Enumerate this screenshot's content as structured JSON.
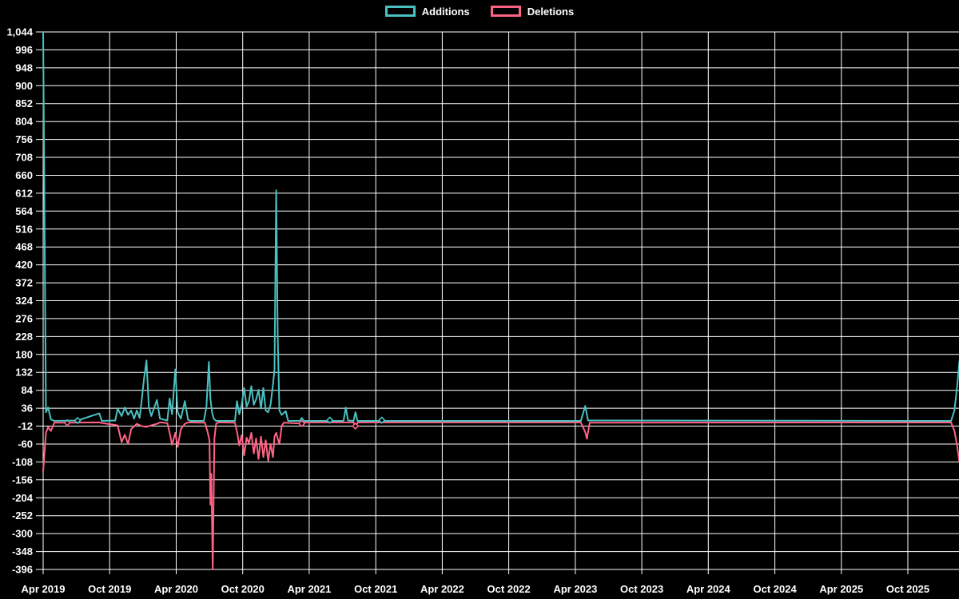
{
  "page": {
    "background": "#000000",
    "grid_color": "#ffffff",
    "text_color": "#ffffff"
  },
  "legend": {
    "position": "top-center",
    "items": [
      {
        "label": "Additions",
        "color": "#4BC0C0"
      },
      {
        "label": "Deletions",
        "color": "#FF6384"
      }
    ]
  },
  "chart_data": {
    "type": "line",
    "title": "",
    "xlabel": "",
    "ylabel": "",
    "grid": true,
    "legend_position": "top-center",
    "x_axis": {
      "unit": "months since Apr 2019",
      "range_months": [
        0,
        82.7
      ],
      "tick_months": [
        0,
        6,
        12,
        18,
        24,
        30,
        36,
        42,
        48,
        54,
        60,
        66,
        72,
        78
      ],
      "tick_labels": [
        "Apr 2019",
        "Oct 2019",
        "Apr 2020",
        "Oct 2020",
        "Apr 2021",
        "Oct 2021",
        "Apr 2022",
        "Oct 2022",
        "Apr 2023",
        "Oct 2023",
        "Apr 2024",
        "Oct 2024",
        "Apr 2025",
        "Oct 2025"
      ]
    },
    "y_axis": {
      "range": [
        -396,
        1044
      ],
      "tick_step": 48,
      "tick_values": [
        1044,
        996,
        948,
        900,
        852,
        804,
        756,
        708,
        660,
        612,
        564,
        516,
        468,
        420,
        372,
        324,
        276,
        228,
        180,
        132,
        84,
        36,
        -12,
        -60,
        -108,
        -156,
        -204,
        -252,
        -300,
        -348,
        -396
      ],
      "tick_labels": [
        "1,044",
        "996",
        "948",
        "900",
        "852",
        "804",
        "756",
        "708",
        "660",
        "612",
        "564",
        "516",
        "468",
        "420",
        "372",
        "324",
        "276",
        "228",
        "180",
        "132",
        "84",
        "36",
        "-12",
        "-60",
        "-108",
        "-156",
        "-204",
        "-252",
        "-300",
        "-348",
        "-396"
      ]
    },
    "series": [
      {
        "name": "Additions",
        "color": "#4BC0C0",
        "points": [
          [
            0,
            1044
          ],
          [
            0.25,
            25
          ],
          [
            0.45,
            38
          ],
          [
            0.7,
            6
          ],
          [
            1,
            2
          ],
          [
            3.11,
            3
          ],
          [
            5.06,
            22
          ],
          [
            5.3,
            2
          ],
          [
            6.5,
            3
          ],
          [
            6.72,
            35
          ],
          [
            7.08,
            15
          ],
          [
            7.37,
            38
          ],
          [
            7.66,
            18
          ],
          [
            7.94,
            30
          ],
          [
            8.2,
            8
          ],
          [
            8.45,
            30
          ],
          [
            8.7,
            10
          ],
          [
            8.88,
            55
          ],
          [
            9.1,
            115
          ],
          [
            9.32,
            164
          ],
          [
            9.53,
            40
          ],
          [
            9.75,
            15
          ],
          [
            10.26,
            58
          ],
          [
            10.54,
            8
          ],
          [
            11.2,
            3
          ],
          [
            11.41,
            62
          ],
          [
            11.63,
            20
          ],
          [
            11.92,
            140
          ],
          [
            12.13,
            25
          ],
          [
            12.42,
            8
          ],
          [
            12.78,
            55
          ],
          [
            13.07,
            5
          ],
          [
            13.3,
            2
          ],
          [
            14.5,
            2
          ],
          [
            14.73,
            40
          ],
          [
            14.95,
            160
          ],
          [
            15.09,
            60
          ],
          [
            15.24,
            25
          ],
          [
            15.38,
            8
          ],
          [
            15.6,
            2
          ],
          [
            17.3,
            2
          ],
          [
            17.48,
            55
          ],
          [
            17.69,
            20
          ],
          [
            17.91,
            45
          ],
          [
            18.13,
            90
          ],
          [
            18.35,
            40
          ],
          [
            18.56,
            55
          ],
          [
            18.78,
            95
          ],
          [
            19,
            45
          ],
          [
            19.21,
            60
          ],
          [
            19.43,
            85
          ],
          [
            19.65,
            35
          ],
          [
            19.86,
            90
          ],
          [
            20.08,
            30
          ],
          [
            20.3,
            25
          ],
          [
            20.51,
            45
          ],
          [
            20.73,
            100
          ],
          [
            20.87,
            140
          ],
          [
            21.02,
            620
          ],
          [
            21.16,
            232
          ],
          [
            21.31,
            30
          ],
          [
            21.52,
            18
          ],
          [
            21.88,
            28
          ],
          [
            22.1,
            2
          ],
          [
            23.15,
            2
          ],
          [
            23.33,
            10
          ],
          [
            23.5,
            2
          ],
          [
            25.6,
            2
          ],
          [
            25.86,
            4
          ],
          [
            26.1,
            2
          ],
          [
            27.1,
            2
          ],
          [
            27.3,
            38
          ],
          [
            27.5,
            3
          ],
          [
            28,
            2
          ],
          [
            28.17,
            25
          ],
          [
            28.35,
            2
          ],
          [
            30.3,
            2
          ],
          [
            30.55,
            4
          ],
          [
            30.8,
            2
          ],
          [
            48.5,
            2
          ],
          [
            48.9,
            42
          ],
          [
            49.15,
            3
          ],
          [
            81.9,
            2
          ],
          [
            82.2,
            30
          ],
          [
            82.45,
            95
          ],
          [
            82.65,
            162
          ]
        ],
        "marker_points": [
          [
            3.11,
            3
          ],
          [
            25.86,
            4
          ],
          [
            30.55,
            4
          ]
        ]
      },
      {
        "name": "Deletions",
        "color": "#FF6384",
        "points": [
          [
            0,
            -133
          ],
          [
            0.25,
            -30
          ],
          [
            0.45,
            -15
          ],
          [
            0.7,
            -25
          ],
          [
            1,
            -3
          ],
          [
            2.17,
            -3
          ],
          [
            5,
            -2
          ],
          [
            6.72,
            -10
          ],
          [
            7.08,
            -55
          ],
          [
            7.37,
            -35
          ],
          [
            7.66,
            -60
          ],
          [
            7.94,
            -20
          ],
          [
            8.45,
            -6
          ],
          [
            8.88,
            -12
          ],
          [
            9.32,
            -14
          ],
          [
            9.75,
            -10
          ],
          [
            10.26,
            -6
          ],
          [
            10.54,
            -2
          ],
          [
            11.2,
            -4
          ],
          [
            11.41,
            -30
          ],
          [
            11.63,
            -62
          ],
          [
            11.92,
            -30
          ],
          [
            12.13,
            -68
          ],
          [
            12.42,
            -20
          ],
          [
            12.78,
            -6
          ],
          [
            13.07,
            -2
          ],
          [
            14.6,
            -3
          ],
          [
            14.85,
            -30
          ],
          [
            15,
            -50
          ],
          [
            15.09,
            -222
          ],
          [
            15.17,
            -140
          ],
          [
            15.3,
            -396
          ],
          [
            15.45,
            -45
          ],
          [
            15.6,
            -6
          ],
          [
            15.8,
            -2
          ],
          [
            17.3,
            -3
          ],
          [
            17.48,
            -26
          ],
          [
            17.69,
            -64
          ],
          [
            17.91,
            -36
          ],
          [
            18.13,
            -90
          ],
          [
            18.35,
            -43
          ],
          [
            18.56,
            -58
          ],
          [
            18.78,
            -30
          ],
          [
            19,
            -85
          ],
          [
            19.21,
            -45
          ],
          [
            19.43,
            -100
          ],
          [
            19.65,
            -40
          ],
          [
            19.86,
            -95
          ],
          [
            20.08,
            -50
          ],
          [
            20.3,
            -105
          ],
          [
            20.51,
            -60
          ],
          [
            20.73,
            -95
          ],
          [
            20.87,
            -40
          ],
          [
            21.02,
            -30
          ],
          [
            21.16,
            -45
          ],
          [
            21.31,
            -60
          ],
          [
            21.52,
            -12
          ],
          [
            21.7,
            -3
          ],
          [
            23.33,
            -5
          ],
          [
            23.6,
            -2
          ],
          [
            28,
            -2
          ],
          [
            28.17,
            -12
          ],
          [
            28.4,
            -2
          ],
          [
            48.5,
            -2
          ],
          [
            48.9,
            -28
          ],
          [
            49.05,
            -46
          ],
          [
            49.3,
            -3
          ],
          [
            81.9,
            -2
          ],
          [
            82.2,
            -25
          ],
          [
            82.45,
            -65
          ],
          [
            82.65,
            -108
          ]
        ],
        "marker_points": [
          [
            2.17,
            -3
          ],
          [
            23.33,
            -5
          ],
          [
            28.17,
            -12
          ]
        ]
      }
    ]
  }
}
